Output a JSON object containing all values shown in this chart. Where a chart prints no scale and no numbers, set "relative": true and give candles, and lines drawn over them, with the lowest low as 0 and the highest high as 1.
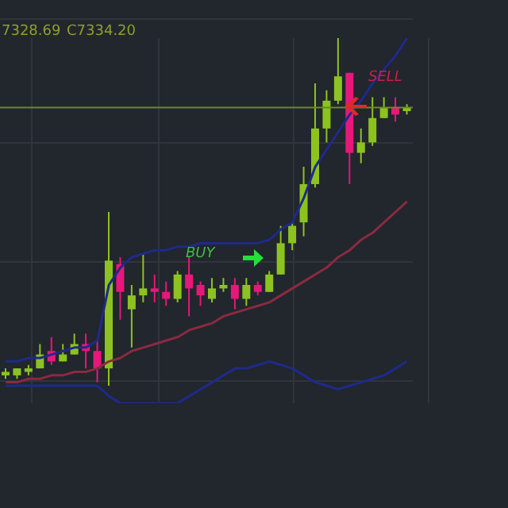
{
  "chart_data": {
    "type": "candlestick",
    "relative": true,
    "categories": [
      null,
      null,
      null,
      null,
      null,
      null,
      null,
      null,
      null,
      null,
      null,
      null,
      null,
      null,
      null,
      null,
      null,
      null,
      null,
      null,
      null,
      null,
      null,
      null,
      null,
      null,
      null,
      null,
      null,
      null,
      null,
      null,
      null,
      null,
      null,
      null
    ],
    "ohlc": [
      [
        0.03,
        0.05,
        0.02,
        0.04
      ],
      [
        0.03,
        0.05,
        0.02,
        0.05
      ],
      [
        0.04,
        0.06,
        0.03,
        0.05
      ],
      [
        0.05,
        0.12,
        0.05,
        0.09
      ],
      [
        0.1,
        0.14,
        0.06,
        0.07
      ],
      [
        0.07,
        0.12,
        0.07,
        0.09
      ],
      [
        0.09,
        0.15,
        0.09,
        0.12
      ],
      [
        0.12,
        0.15,
        0.05,
        0.1
      ],
      [
        0.1,
        0.13,
        0.01,
        0.05
      ],
      [
        0.05,
        0.5,
        0,
        0.36
      ],
      [
        0.35,
        0.37,
        0.19,
        0.27
      ],
      [
        0.22,
        0.29,
        0.11,
        0.26
      ],
      [
        0.26,
        0.38,
        0.24,
        0.28
      ],
      [
        0.28,
        0.32,
        0.24,
        0.27
      ],
      [
        0.27,
        0.3,
        0.23,
        0.25
      ],
      [
        0.25,
        0.33,
        0.24,
        0.32
      ],
      [
        0.32,
        0.37,
        0.2,
        0.28
      ],
      [
        0.29,
        0.3,
        0.23,
        0.26
      ],
      [
        0.25,
        0.31,
        0.24,
        0.28
      ],
      [
        0.28,
        0.31,
        0.27,
        0.29
      ],
      [
        0.29,
        0.31,
        0.22,
        0.25
      ],
      [
        0.25,
        0.31,
        0.23,
        0.29
      ],
      [
        0.29,
        0.3,
        0.26,
        0.27
      ],
      [
        0.27,
        0.33,
        0.27,
        0.32
      ],
      [
        0.32,
        0.46,
        0.32,
        0.41
      ],
      [
        0.41,
        0.47,
        0.39,
        0.46
      ],
      [
        0.47,
        0.63,
        0.43,
        0.58
      ],
      [
        0.58,
        0.87,
        0.57,
        0.74
      ],
      [
        0.74,
        0.85,
        0.7,
        0.82
      ],
      [
        0.82,
        1,
        0.81,
        0.89
      ],
      [
        0.9,
        0.9,
        0.58,
        0.67
      ],
      [
        0.67,
        0.74,
        0.64,
        0.7
      ],
      [
        0.7,
        0.83,
        0.69,
        0.77
      ],
      [
        0.77,
        0.83,
        0.77,
        0.8
      ],
      [
        0.8,
        0.83,
        0.76,
        0.78
      ],
      [
        0.79,
        0.81,
        0.78,
        0.8
      ]
    ],
    "colors": [
      "#8cc320",
      "#8cc320",
      "#8cc320",
      "#8cc320",
      "#e8177a",
      "#8cc320",
      "#8cc320",
      "#e8177a",
      "#e8177a",
      "#8cc320",
      "#e8177a",
      "#8cc320",
      "#8cc320",
      "#e8177a",
      "#e8177a",
      "#8cc320",
      "#e8177a",
      "#e8177a",
      "#8cc320",
      "#8cc320",
      "#e8177a",
      "#8cc320",
      "#e8177a",
      "#8cc320",
      "#8cc320",
      "#8cc320",
      "#8cc320",
      "#8cc320",
      "#8cc320",
      "#8cc320",
      "#e8177a",
      "#8cc320",
      "#8cc320",
      "#8cc320",
      "#e8177a",
      "#8cc320"
    ],
    "series": [
      {
        "type": "line",
        "color": "#8a2a40",
        "values": [
          0.01,
          0.01,
          0.02,
          0.02,
          0.03,
          0.03,
          0.04,
          0.04,
          0.05,
          0.07,
          0.08,
          0.1,
          0.11,
          0.12,
          0.13,
          0.14,
          0.16,
          0.17,
          0.18,
          0.2,
          0.21,
          0.22,
          0.23,
          0.24,
          0.26,
          0.28,
          0.3,
          0.32,
          0.34,
          0.37,
          0.39,
          0.42,
          0.44,
          0.47,
          0.5,
          0.53
        ]
      },
      {
        "type": "line",
        "color": "#1e2a8a",
        "values": [
          0.07,
          0.07,
          0.08,
          0.08,
          0.09,
          0.1,
          0.11,
          0.11,
          0.13,
          0.29,
          0.34,
          0.37,
          0.38,
          0.39,
          0.39,
          0.4,
          0.4,
          0.41,
          0.41,
          0.41,
          0.41,
          0.41,
          0.41,
          0.42,
          0.45,
          0.47,
          0.54,
          0.63,
          0.68,
          0.73,
          0.78,
          0.82,
          0.87,
          0.91,
          0.95,
          1
        ]
      },
      {
        "type": "line",
        "color": "#1e2a8a",
        "values": [
          0,
          0,
          0,
          0,
          0,
          0,
          0,
          0,
          0,
          -0.03,
          -0.05,
          -0.05,
          -0.05,
          -0.05,
          -0.05,
          -0.05,
          -0.03,
          -0.01,
          0.01,
          0.03,
          0.05,
          0.05,
          0.06,
          0.07,
          0.06,
          0.05,
          0.03,
          0.01,
          0,
          -0.01,
          0,
          0.01,
          0.02,
          0.03,
          0.05,
          0.07
        ]
      }
    ],
    "ref_lines": [
      {
        "axis": "y",
        "value": 0.8,
        "color": "#6b8a23"
      }
    ],
    "grid": true,
    "tick_labels": false,
    "annotations": [
      "7328.69",
      "C7334.20",
      "BUY",
      "SELL"
    ]
  }
}
